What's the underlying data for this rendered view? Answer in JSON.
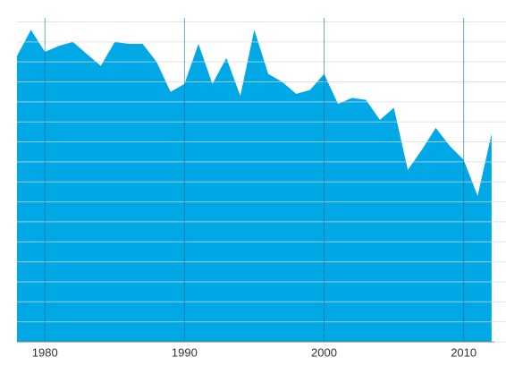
{
  "chart_data": {
    "type": "area",
    "color": "#00a9e6",
    "x": [
      1978,
      1979,
      1980,
      1981,
      1982,
      1983,
      1984,
      1985,
      1986,
      1987,
      1988,
      1989,
      1990,
      1991,
      1992,
      1993,
      1994,
      1995,
      1996,
      1997,
      1998,
      1999,
      2000,
      2001,
      2002,
      2003,
      2004,
      2005,
      2006,
      2007,
      2008,
      2009,
      2010,
      2011,
      2012
    ],
    "values": [
      14.3,
      15.6,
      14.5,
      14.8,
      15.0,
      14.4,
      13.8,
      15.0,
      14.9,
      14.9,
      14.0,
      12.5,
      12.9,
      14.9,
      12.9,
      14.2,
      12.3,
      15.6,
      13.4,
      13.0,
      12.4,
      12.6,
      13.4,
      11.9,
      12.2,
      12.1,
      11.1,
      11.7,
      8.6,
      9.6,
      10.7,
      9.8,
      9.1,
      7.3,
      10.4
    ],
    "xlim": [
      1978,
      2012.2
    ],
    "xticks": [
      1980,
      1990,
      2000,
      2010
    ],
    "ylim": [
      0,
      16.2
    ],
    "yticks": [
      0,
      1,
      2,
      3,
      4,
      5,
      6,
      7,
      8,
      9,
      10,
      11,
      12,
      13,
      14,
      15,
      16
    ],
    "grid": true
  }
}
